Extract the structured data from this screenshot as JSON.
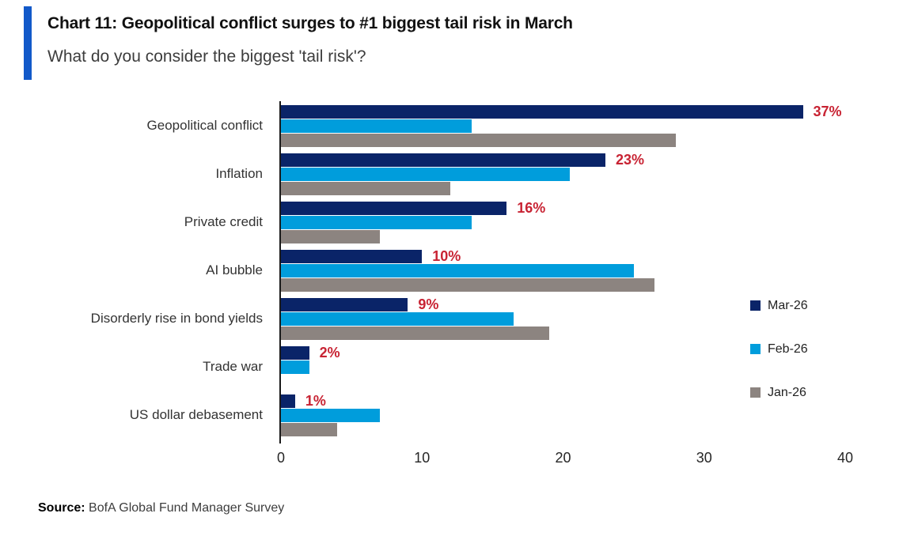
{
  "header": {
    "title": "Chart 11: Geopolitical conflict surges to #1 biggest tail risk in March",
    "subtitle": "What do you consider the biggest 'tail risk'?",
    "accent_color": "#1259C9"
  },
  "chart_data": {
    "type": "bar",
    "orientation": "horizontal",
    "title": "Chart 11: Geopolitical conflict surges to #1 biggest tail risk in March",
    "subtitle": "What do you consider the biggest 'tail risk'?",
    "categories": [
      "Geopolitical conflict",
      "Inflation",
      "Private credit",
      "AI bubble",
      "Disorderly rise in bond yields",
      "Trade war",
      "US dollar debasement"
    ],
    "series": [
      {
        "name": "Mar-26",
        "color": "#0A2468",
        "values": [
          37,
          23,
          16,
          10,
          9,
          2,
          1
        ]
      },
      {
        "name": "Feb-26",
        "color": "#009DDC",
        "values": [
          13.5,
          20.5,
          13.5,
          25,
          16.5,
          2,
          7
        ]
      },
      {
        "name": "Jan-26",
        "color": "#8C8480",
        "values": [
          28,
          12,
          7,
          26.5,
          19,
          0,
          4
        ]
      }
    ],
    "data_labels": [
      "37%",
      "23%",
      "16%",
      "10%",
      "9%",
      "2%",
      "1%"
    ],
    "data_label_color": "#C82333",
    "xlabel": "",
    "ylabel": "",
    "x_ticks": [
      0,
      10,
      20,
      30,
      40
    ],
    "xlim": [
      0,
      40
    ],
    "grid": false,
    "legend_position": "right",
    "axis_color": "#1a1a1a"
  },
  "source": {
    "label": "Source:",
    "text": " BofA Global Fund Manager Survey"
  }
}
